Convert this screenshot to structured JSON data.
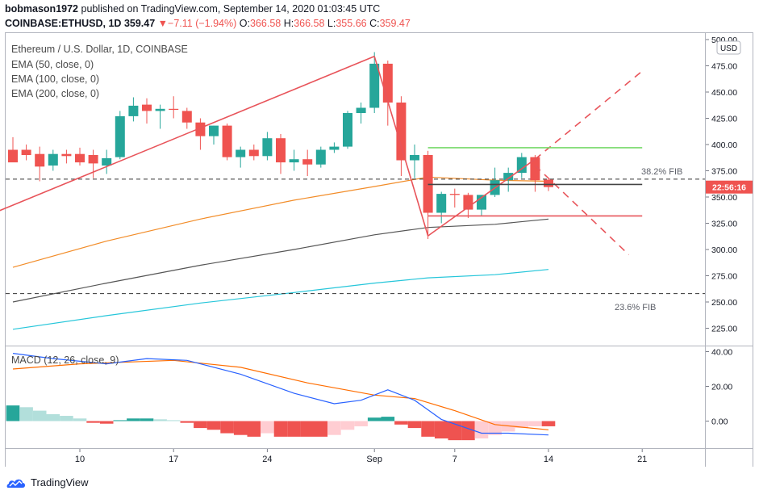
{
  "header": {
    "user": "bobmason1972",
    "published": "published on TradingView.com, September 14, 2020 01:03:45 UTC",
    "symbol": "COINBASE:ETHUSD, 1D",
    "last": "359.47",
    "change": "−7.11 (−1.94%)",
    "open_label": "O:",
    "open": "366.58",
    "high_label": "H:",
    "high": "366.58",
    "low_label": "L:",
    "low": "355.66",
    "close_label": "C:",
    "close": "359.47"
  },
  "legend": {
    "title": "Ethereum / U.S. Dollar, 1D, COINBASE",
    "ema50": "EMA (50, close, 0)",
    "ema100": "EMA (100, close, 0)",
    "ema200": "EMA (200, close, 0)",
    "macd": "MACD (12, 26, close, 9)"
  },
  "price_axis": {
    "currency": "USD",
    "ticks": [
      "500.00",
      "475.00",
      "450.00",
      "425.00",
      "400.00",
      "375.00",
      "350.00",
      "325.00",
      "300.00",
      "275.00",
      "250.00",
      "225.00"
    ],
    "current_label": "22:56:16"
  },
  "macd_axis": {
    "ticks": [
      "40.00",
      "20.00",
      "0.00"
    ]
  },
  "x_axis": {
    "labels": [
      "10",
      "17",
      "24",
      "Sep",
      "7",
      "14",
      "21"
    ]
  },
  "fib": {
    "upper": "38.2% FIB",
    "lower": "23.6% FIB"
  },
  "footer": {
    "brand": "TradingView"
  },
  "colors": {
    "up": "#26a69a",
    "down": "#ef5350",
    "ema50": "#f28c28",
    "ema100": "#555555",
    "ema200": "#26c6da",
    "macd": "#2962ff",
    "signal": "#ff6d00",
    "draw": "#e8545a",
    "resistance": "#76d96a"
  },
  "chart_data": {
    "type": "candlestick",
    "symbol": "ETHUSD",
    "interval": "1D",
    "x_tick_labels": [
      "10",
      "17",
      "24",
      "Sep",
      "7",
      "14",
      "21"
    ],
    "ylim": [
      215,
      505
    ],
    "candles": [
      {
        "date": "2020-08-05",
        "o": 395,
        "h": 407,
        "l": 385,
        "c": 383
      },
      {
        "date": "2020-08-06",
        "o": 395,
        "h": 400,
        "l": 385,
        "c": 390
      },
      {
        "date": "2020-08-07",
        "o": 391,
        "h": 398,
        "l": 365,
        "c": 379
      },
      {
        "date": "2020-08-08",
        "o": 380,
        "h": 395,
        "l": 375,
        "c": 391
      },
      {
        "date": "2020-08-09",
        "o": 391,
        "h": 395,
        "l": 382,
        "c": 389
      },
      {
        "date": "2020-08-10",
        "o": 391,
        "h": 397,
        "l": 380,
        "c": 383
      },
      {
        "date": "2020-08-11",
        "o": 390,
        "h": 395,
        "l": 368,
        "c": 382
      },
      {
        "date": "2020-08-12",
        "o": 380,
        "h": 395,
        "l": 372,
        "c": 387
      },
      {
        "date": "2020-08-13",
        "o": 388,
        "h": 432,
        "l": 386,
        "c": 427
      },
      {
        "date": "2020-08-14",
        "o": 427,
        "h": 445,
        "l": 422,
        "c": 437
      },
      {
        "date": "2020-08-15",
        "o": 438,
        "h": 444,
        "l": 420,
        "c": 432
      },
      {
        "date": "2020-08-16",
        "o": 432,
        "h": 438,
        "l": 415,
        "c": 434
      },
      {
        "date": "2020-08-17",
        "o": 434,
        "h": 446,
        "l": 425,
        "c": 433
      },
      {
        "date": "2020-08-18",
        "o": 432,
        "h": 435,
        "l": 415,
        "c": 421
      },
      {
        "date": "2020-08-19",
        "o": 421,
        "h": 425,
        "l": 395,
        "c": 408
      },
      {
        "date": "2020-08-20",
        "o": 408,
        "h": 418,
        "l": 400,
        "c": 418
      },
      {
        "date": "2020-08-21",
        "o": 418,
        "h": 420,
        "l": 385,
        "c": 388
      },
      {
        "date": "2020-08-22",
        "o": 388,
        "h": 398,
        "l": 378,
        "c": 395
      },
      {
        "date": "2020-08-23",
        "o": 395,
        "h": 400,
        "l": 385,
        "c": 389
      },
      {
        "date": "2020-08-24",
        "o": 389,
        "h": 412,
        "l": 385,
        "c": 406
      },
      {
        "date": "2020-08-25",
        "o": 406,
        "h": 410,
        "l": 372,
        "c": 383
      },
      {
        "date": "2020-08-26",
        "o": 383,
        "h": 395,
        "l": 375,
        "c": 386
      },
      {
        "date": "2020-08-27",
        "o": 386,
        "h": 395,
        "l": 370,
        "c": 381
      },
      {
        "date": "2020-08-28",
        "o": 381,
        "h": 398,
        "l": 378,
        "c": 395
      },
      {
        "date": "2020-08-29",
        "o": 395,
        "h": 402,
        "l": 392,
        "c": 398
      },
      {
        "date": "2020-08-30",
        "o": 398,
        "h": 432,
        "l": 396,
        "c": 430
      },
      {
        "date": "2020-08-31",
        "o": 430,
        "h": 440,
        "l": 420,
        "c": 435
      },
      {
        "date": "2020-09-01",
        "o": 435,
        "h": 488,
        "l": 430,
        "c": 477
      },
      {
        "date": "2020-09-02",
        "o": 477,
        "h": 480,
        "l": 418,
        "c": 440
      },
      {
        "date": "2020-09-03",
        "o": 440,
        "h": 446,
        "l": 370,
        "c": 385
      },
      {
        "date": "2020-09-04",
        "o": 385,
        "h": 400,
        "l": 368,
        "c": 390
      },
      {
        "date": "2020-09-05",
        "o": 390,
        "h": 394,
        "l": 310,
        "c": 335
      },
      {
        "date": "2020-09-06",
        "o": 335,
        "h": 355,
        "l": 325,
        "c": 353
      },
      {
        "date": "2020-09-07",
        "o": 353,
        "h": 358,
        "l": 340,
        "c": 352
      },
      {
        "date": "2020-09-08",
        "o": 352,
        "h": 354,
        "l": 330,
        "c": 338
      },
      {
        "date": "2020-09-09",
        "o": 338,
        "h": 352,
        "l": 332,
        "c": 352
      },
      {
        "date": "2020-09-10",
        "o": 352,
        "h": 378,
        "l": 350,
        "c": 366
      },
      {
        "date": "2020-09-11",
        "o": 366,
        "h": 378,
        "l": 355,
        "c": 373
      },
      {
        "date": "2020-09-12",
        "o": 373,
        "h": 392,
        "l": 368,
        "c": 388
      },
      {
        "date": "2020-09-13",
        "o": 388,
        "h": 390,
        "l": 355,
        "c": 366
      },
      {
        "date": "2020-09-14",
        "o": 366.58,
        "h": 366.58,
        "l": 355.66,
        "c": 359.47
      }
    ],
    "ema50": [
      {
        "date": "2020-08-05",
        "v": 283
      },
      {
        "date": "2020-08-12",
        "v": 308
      },
      {
        "date": "2020-08-19",
        "v": 329
      },
      {
        "date": "2020-08-26",
        "v": 347
      },
      {
        "date": "2020-09-01",
        "v": 360
      },
      {
        "date": "2020-09-05",
        "v": 369
      },
      {
        "date": "2020-09-10",
        "v": 366
      },
      {
        "date": "2020-09-14",
        "v": 365
      }
    ],
    "ema100": [
      {
        "date": "2020-08-05",
        "v": 250
      },
      {
        "date": "2020-08-12",
        "v": 268
      },
      {
        "date": "2020-08-19",
        "v": 285
      },
      {
        "date": "2020-08-26",
        "v": 300
      },
      {
        "date": "2020-09-01",
        "v": 314
      },
      {
        "date": "2020-09-05",
        "v": 321
      },
      {
        "date": "2020-09-10",
        "v": 324
      },
      {
        "date": "2020-09-14",
        "v": 329
      }
    ],
    "ema200": [
      {
        "date": "2020-08-05",
        "v": 224
      },
      {
        "date": "2020-08-12",
        "v": 237
      },
      {
        "date": "2020-08-19",
        "v": 249
      },
      {
        "date": "2020-08-26",
        "v": 259
      },
      {
        "date": "2020-09-01",
        "v": 268
      },
      {
        "date": "2020-09-05",
        "v": 273
      },
      {
        "date": "2020-09-10",
        "v": 276
      },
      {
        "date": "2020-09-14",
        "v": 281
      }
    ],
    "fib_levels": [
      {
        "label": "38.2% FIB",
        "price": 367
      },
      {
        "label": "23.6% FIB",
        "price": 258
      }
    ],
    "drawings": [
      {
        "kind": "trendline",
        "from": {
          "date": "2020-08-04",
          "price": 337
        },
        "to": {
          "date": "2020-09-01",
          "price": 484
        }
      },
      {
        "kind": "trendline",
        "from": {
          "date": "2020-09-01",
          "price": 484
        },
        "to": {
          "date": "2020-09-05",
          "price": 313
        }
      },
      {
        "kind": "trendline",
        "from": {
          "date": "2020-09-05",
          "price": 313
        },
        "to": {
          "date": "2020-09-13",
          "price": 386
        }
      },
      {
        "kind": "trendline",
        "dashed": true,
        "from": {
          "date": "2020-09-13",
          "price": 386
        },
        "to": {
          "date": "2020-09-21",
          "price": 470
        }
      },
      {
        "kind": "trendline",
        "dashed": true,
        "from": {
          "date": "2020-09-13",
          "price": 380
        },
        "to": {
          "date": "2020-09-20",
          "price": 295
        }
      },
      {
        "kind": "horizontal",
        "color": "green",
        "price": 397,
        "from": "2020-09-05",
        "to": "2020-09-21"
      },
      {
        "kind": "horizontal",
        "color": "gray",
        "price": 362,
        "from": "2020-09-05",
        "to": "2020-09-21"
      },
      {
        "kind": "horizontal",
        "color": "red",
        "price": 332,
        "from": "2020-09-05",
        "to": "2020-09-21"
      }
    ],
    "macd": {
      "ylim": [
        -12,
        42
      ],
      "macd_line": [
        {
          "date": "2020-08-05",
          "v": 39
        },
        {
          "date": "2020-08-08",
          "v": 36
        },
        {
          "date": "2020-08-12",
          "v": 33
        },
        {
          "date": "2020-08-15",
          "v": 36
        },
        {
          "date": "2020-08-18",
          "v": 35
        },
        {
          "date": "2020-08-22",
          "v": 27
        },
        {
          "date": "2020-08-26",
          "v": 16
        },
        {
          "date": "2020-08-29",
          "v": 10
        },
        {
          "date": "2020-08-31",
          "v": 12
        },
        {
          "date": "2020-09-02",
          "v": 18
        },
        {
          "date": "2020-09-04",
          "v": 12
        },
        {
          "date": "2020-09-06",
          "v": 1
        },
        {
          "date": "2020-09-09",
          "v": -7
        },
        {
          "date": "2020-09-11",
          "v": -7
        },
        {
          "date": "2020-09-14",
          "v": -8
        }
      ],
      "signal_line": [
        {
          "date": "2020-08-05",
          "v": 30
        },
        {
          "date": "2020-08-10",
          "v": 33
        },
        {
          "date": "2020-08-17",
          "v": 35
        },
        {
          "date": "2020-08-22",
          "v": 31
        },
        {
          "date": "2020-08-27",
          "v": 22
        },
        {
          "date": "2020-09-01",
          "v": 15
        },
        {
          "date": "2020-09-04",
          "v": 13
        },
        {
          "date": "2020-09-07",
          "v": 6
        },
        {
          "date": "2020-09-10",
          "v": -2
        },
        {
          "date": "2020-09-14",
          "v": -5
        }
      ],
      "histogram": [
        {
          "date": "2020-08-05",
          "v": 9
        },
        {
          "date": "2020-08-06",
          "v": 8
        },
        {
          "date": "2020-08-07",
          "v": 6
        },
        {
          "date": "2020-08-08",
          "v": 4
        },
        {
          "date": "2020-08-09",
          "v": 3
        },
        {
          "date": "2020-08-10",
          "v": 1.5
        },
        {
          "date": "2020-08-11",
          "v": -1
        },
        {
          "date": "2020-08-12",
          "v": -1.5
        },
        {
          "date": "2020-08-13",
          "v": 0.5
        },
        {
          "date": "2020-08-14",
          "v": 1.5
        },
        {
          "date": "2020-08-15",
          "v": 1.5
        },
        {
          "date": "2020-08-16",
          "v": 1
        },
        {
          "date": "2020-08-17",
          "v": 0.5
        },
        {
          "date": "2020-08-18",
          "v": -1
        },
        {
          "date": "2020-08-19",
          "v": -4
        },
        {
          "date": "2020-08-20",
          "v": -5
        },
        {
          "date": "2020-08-21",
          "v": -7
        },
        {
          "date": "2020-08-22",
          "v": -8
        },
        {
          "date": "2020-08-23",
          "v": -9
        },
        {
          "date": "2020-08-24",
          "v": -7
        },
        {
          "date": "2020-08-25",
          "v": -9
        },
        {
          "date": "2020-08-26",
          "v": -9
        },
        {
          "date": "2020-08-27",
          "v": -9
        },
        {
          "date": "2020-08-28",
          "v": -9
        },
        {
          "date": "2020-08-29",
          "v": -8
        },
        {
          "date": "2020-08-30",
          "v": -5
        },
        {
          "date": "2020-08-31",
          "v": -3
        },
        {
          "date": "2020-09-01",
          "v": 2
        },
        {
          "date": "2020-09-02",
          "v": 2.5
        },
        {
          "date": "2020-09-03",
          "v": -2
        },
        {
          "date": "2020-09-04",
          "v": -4
        },
        {
          "date": "2020-09-05",
          "v": -9
        },
        {
          "date": "2020-09-06",
          "v": -10
        },
        {
          "date": "2020-09-07",
          "v": -11
        },
        {
          "date": "2020-09-08",
          "v": -11
        },
        {
          "date": "2020-09-09",
          "v": -10
        },
        {
          "date": "2020-09-10",
          "v": -8
        },
        {
          "date": "2020-09-11",
          "v": -6
        },
        {
          "date": "2020-09-12",
          "v": -4
        },
        {
          "date": "2020-09-13",
          "v": -3
        },
        {
          "date": "2020-09-14",
          "v": -3
        }
      ]
    }
  }
}
